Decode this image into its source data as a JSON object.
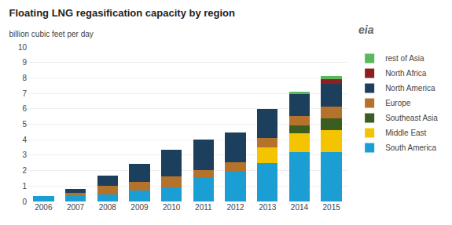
{
  "chart_data": {
    "type": "bar",
    "title": "Floating LNG regasification capacity by region",
    "subtitle": "billion cubic feet per day",
    "categories": [
      "2006",
      "2007",
      "2008",
      "2009",
      "2010",
      "2011",
      "2012",
      "2013",
      "2014",
      "2015"
    ],
    "series": [
      {
        "name": "South America",
        "color": "#1a9ed4",
        "values": [
          0.35,
          0.35,
          0.45,
          0.7,
          0.9,
          1.5,
          2.0,
          2.5,
          3.2,
          3.2
        ]
      },
      {
        "name": "Middle East",
        "color": "#f5c400",
        "values": [
          0.0,
          0.0,
          0.0,
          0.0,
          0.0,
          0.0,
          0.0,
          1.0,
          1.2,
          1.4
        ]
      },
      {
        "name": "Southeast Asia",
        "color": "#3a5e1f",
        "values": [
          0.0,
          0.0,
          0.0,
          0.0,
          0.0,
          0.0,
          0.0,
          0.0,
          0.5,
          0.8
        ]
      },
      {
        "name": "Europe",
        "color": "#b5722a",
        "values": [
          0.0,
          0.2,
          0.55,
          0.55,
          0.7,
          0.55,
          0.55,
          0.6,
          0.65,
          0.75
        ]
      },
      {
        "name": "North America",
        "color": "#1c3f5e",
        "values": [
          0.0,
          0.25,
          0.7,
          1.2,
          1.75,
          1.95,
          1.9,
          1.9,
          1.45,
          1.45
        ]
      },
      {
        "name": "North Africa",
        "color": "#8b2020",
        "values": [
          0.0,
          0.0,
          0.0,
          0.0,
          0.0,
          0.0,
          0.0,
          0.0,
          0.0,
          0.3
        ]
      },
      {
        "name": "rest of Asia",
        "color": "#5cb85c",
        "values": [
          0.0,
          0.0,
          0.0,
          0.0,
          0.0,
          0.0,
          0.0,
          0.0,
          0.1,
          0.2
        ]
      }
    ],
    "stacked": true,
    "ylim": [
      0,
      10
    ],
    "yticks": [
      0,
      1,
      2,
      3,
      4,
      5,
      6,
      7,
      8,
      9,
      10
    ],
    "grid": true,
    "legend": "right",
    "annotations": [
      "eia"
    ]
  }
}
